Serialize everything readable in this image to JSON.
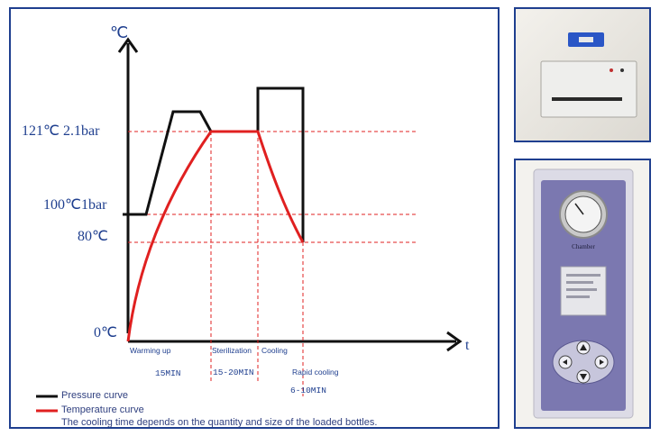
{
  "diagram": {
    "y_axis_label": "℃",
    "x_axis_label": "t",
    "levels": [
      {
        "label": "121℃ 2.1bar"
      },
      {
        "label": "100℃1bar"
      },
      {
        "label": "80℃"
      },
      {
        "label": "0℃"
      }
    ],
    "phases": [
      {
        "label": "Warming up",
        "duration": "15MIN"
      },
      {
        "label": "Sterilization",
        "duration": "15-20MIN"
      },
      {
        "label": "Cooling",
        "duration": ""
      },
      {
        "label": "Rapid cooling",
        "duration": "6-10MIN"
      }
    ],
    "legend": [
      {
        "label": "Pressure curve",
        "color": "#111111"
      },
      {
        "label": "Temperature curve",
        "color": "#e02020"
      }
    ],
    "note": "The cooling time depends on the quantity and size of the loaded bottles.",
    "colors": {
      "axis": "#111111",
      "guide": "#e02020",
      "text": "#1f3f8f",
      "frame": "#1f3f8f"
    }
  },
  "photos": {
    "control_panel_label": "Chamber"
  }
}
